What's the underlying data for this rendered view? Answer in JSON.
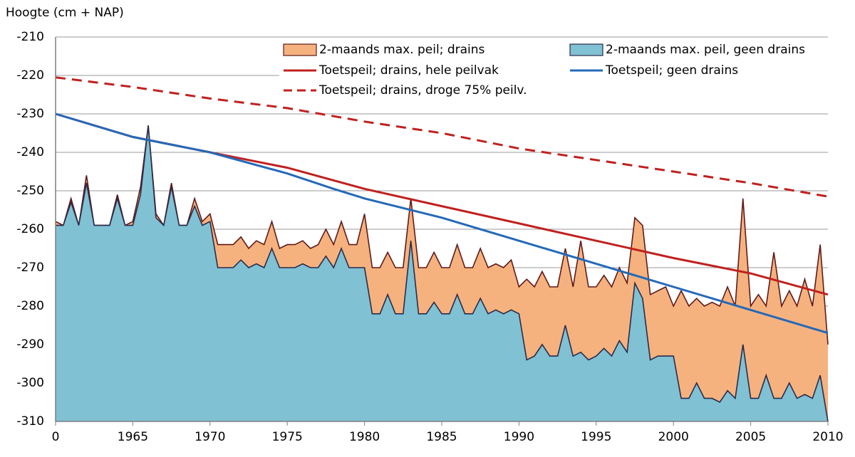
{
  "chart_data": {
    "type": "area-line",
    "ylabel": "Hoogte (cm + NAP)",
    "xlim": [
      1960,
      2010
    ],
    "xticks": [
      {
        "value": 1960,
        "label": "0"
      },
      1965,
      1970,
      1975,
      1980,
      1985,
      1990,
      1995,
      2000,
      2005,
      2010
    ],
    "ylim": [
      -310,
      -210
    ],
    "yticks": [
      -310,
      -300,
      -290,
      -280,
      -270,
      -260,
      -250,
      -240,
      -230,
      -220,
      -210
    ],
    "grid": true,
    "legend": "top",
    "series": [
      {
        "name": "2-maands max. peil; drains",
        "kind": "area",
        "color": "#f6b27e",
        "edge": "#5e1a1a",
        "x": [
          1960,
          1960.5,
          1961,
          1961.5,
          1962,
          1962.5,
          1963,
          1963.5,
          1964,
          1964.5,
          1965,
          1965.5,
          1966,
          1966.5,
          1967,
          1967.5,
          1968,
          1968.5,
          1969,
          1969.5,
          1970,
          1970.5,
          1971,
          1971.5,
          1972,
          1972.5,
          1973,
          1973.5,
          1974,
          1974.5,
          1975,
          1975.5,
          1976,
          1976.5,
          1977,
          1977.5,
          1978,
          1978.5,
          1979,
          1979.5,
          1980,
          1980.5,
          1981,
          1981.5,
          1982,
          1982.5,
          1983,
          1983.5,
          1984,
          1984.5,
          1985,
          1985.5,
          1986,
          1986.5,
          1987,
          1987.5,
          1988,
          1988.5,
          1989,
          1989.5,
          1990,
          1990.5,
          1991,
          1991.5,
          1992,
          1992.5,
          1993,
          1993.5,
          1994,
          1994.5,
          1995,
          1995.5,
          1996,
          1996.5,
          1997,
          1997.5,
          1998,
          1998.5,
          1999,
          1999.5,
          2000,
          2000.5,
          2001,
          2001.5,
          2002,
          2002.5,
          2003,
          2003.5,
          2004,
          2004.5,
          2005,
          2005.5,
          2006,
          2006.5,
          2007,
          2007.5,
          2008,
          2008.5,
          2009,
          2009.5,
          2010
        ],
        "values": [
          -258,
          -259,
          -252,
          -259,
          -246,
          -259,
          -259,
          -259,
          -251,
          -259,
          -258,
          -249,
          -233,
          -256,
          -259,
          -248,
          -259,
          -259,
          -252,
          -258,
          -256,
          -264,
          -264,
          -264,
          -262,
          -265,
          -263,
          -264,
          -258,
          -265,
          -264,
          -264,
          -263,
          -265,
          -264,
          -260,
          -264,
          -258,
          -264,
          -264,
          -256,
          -270,
          -270,
          -266,
          -270,
          -270,
          -252,
          -270,
          -270,
          -266,
          -270,
          -270,
          -264,
          -270,
          -270,
          -265,
          -270,
          -269,
          -270,
          -268,
          -275,
          -273,
          -275,
          -271,
          -275,
          -275,
          -265,
          -275,
          -263,
          -275,
          -275,
          -272,
          -275,
          -270,
          -274,
          -257,
          -259,
          -277,
          -276,
          -275,
          -280,
          -276,
          -280,
          -278,
          -280,
          -279,
          -280,
          -275,
          -280,
          -252,
          -280,
          -277,
          -280,
          -266,
          -280,
          -276,
          -280,
          -273,
          -280,
          -264,
          -290
        ]
      },
      {
        "name": "2-maands max. peil, geen drains",
        "kind": "area",
        "color": "#80c1d3",
        "edge": "#2b2b4b",
        "x": [
          1960,
          1960.5,
          1961,
          1961.5,
          1962,
          1962.5,
          1963,
          1963.5,
          1964,
          1964.5,
          1965,
          1965.5,
          1966,
          1966.5,
          1967,
          1967.5,
          1968,
          1968.5,
          1969,
          1969.5,
          1970,
          1970.5,
          1971,
          1971.5,
          1972,
          1972.5,
          1973,
          1973.5,
          1974,
          1974.5,
          1975,
          1975.5,
          1976,
          1976.5,
          1977,
          1977.5,
          1978,
          1978.5,
          1979,
          1979.5,
          1980,
          1980.5,
          1981,
          1981.5,
          1982,
          1982.5,
          1983,
          1983.5,
          1984,
          1984.5,
          1985,
          1985.5,
          1986,
          1986.5,
          1987,
          1987.5,
          1988,
          1988.5,
          1989,
          1989.5,
          1990,
          1990.5,
          1991,
          1991.5,
          1992,
          1992.5,
          1993,
          1993.5,
          1994,
          1994.5,
          1995,
          1995.5,
          1996,
          1996.5,
          1997,
          1997.5,
          1998,
          1998.5,
          1999,
          1999.5,
          2000,
          2000.5,
          2001,
          2001.5,
          2002,
          2002.5,
          2003,
          2003.5,
          2004,
          2004.5,
          2005,
          2005.5,
          2006,
          2006.5,
          2007,
          2007.5,
          2008,
          2008.5,
          2009,
          2009.5,
          2010
        ],
        "values": [
          -259,
          -259,
          -253,
          -259,
          -248,
          -259,
          -259,
          -259,
          -252,
          -259,
          -259,
          -251,
          -233,
          -257,
          -259,
          -249,
          -259,
          -259,
          -254,
          -259,
          -258,
          -270,
          -270,
          -270,
          -268,
          -270,
          -269,
          -270,
          -265,
          -270,
          -270,
          -270,
          -269,
          -270,
          -270,
          -267,
          -270,
          -265,
          -270,
          -270,
          -270,
          -282,
          -282,
          -277,
          -282,
          -282,
          -263,
          -282,
          -282,
          -279,
          -282,
          -282,
          -277,
          -282,
          -282,
          -278,
          -282,
          -281,
          -282,
          -281,
          -282,
          -294,
          -293,
          -290,
          -293,
          -293,
          -285,
          -293,
          -292,
          -294,
          -293,
          -291,
          -293,
          -289,
          -292,
          -274,
          -278,
          -294,
          -293,
          -293,
          -293,
          -304,
          -304,
          -300,
          -304,
          -304,
          -305,
          -302,
          -304,
          -290,
          -304,
          -304,
          -298,
          -304,
          -304,
          -300,
          -304,
          -303,
          -304,
          -298,
          -310
        ]
      },
      {
        "name": "Toetspeil; drains, hele peilvak",
        "kind": "line",
        "color": "#c0211f",
        "dash": false,
        "x": [
          1960,
          1965,
          1970,
          1975,
          1980,
          1985,
          1990,
          1995,
          2000,
          2005,
          2010
        ],
        "values": [
          -230,
          -236,
          -240,
          -244,
          -249.5,
          -254,
          -258.5,
          -263,
          -267.5,
          -271.5,
          -277
        ]
      },
      {
        "name": "Toetspeil; geen drains",
        "kind": "line",
        "color": "#2469b8",
        "dash": false,
        "x": [
          1960,
          1965,
          1970,
          1975,
          1978,
          1980,
          1985,
          1990,
          1995,
          2000,
          2005,
          2010
        ],
        "values": [
          -230,
          -236,
          -240,
          -245.5,
          -249.5,
          -252,
          -257,
          -263,
          -269,
          -275,
          -281,
          -287
        ]
      },
      {
        "name": "Toetspeil; drains, droge 75% peilv.",
        "kind": "line",
        "color": "#c0211f",
        "dash": true,
        "x": [
          1960,
          1965,
          1970,
          1975,
          1980,
          1985,
          1990,
          1995,
          2000,
          2005,
          2010
        ],
        "values": [
          -220.5,
          -223,
          -226,
          -228.5,
          -232,
          -235,
          -239,
          -242,
          -245,
          -248,
          -251.5
        ]
      }
    ]
  }
}
